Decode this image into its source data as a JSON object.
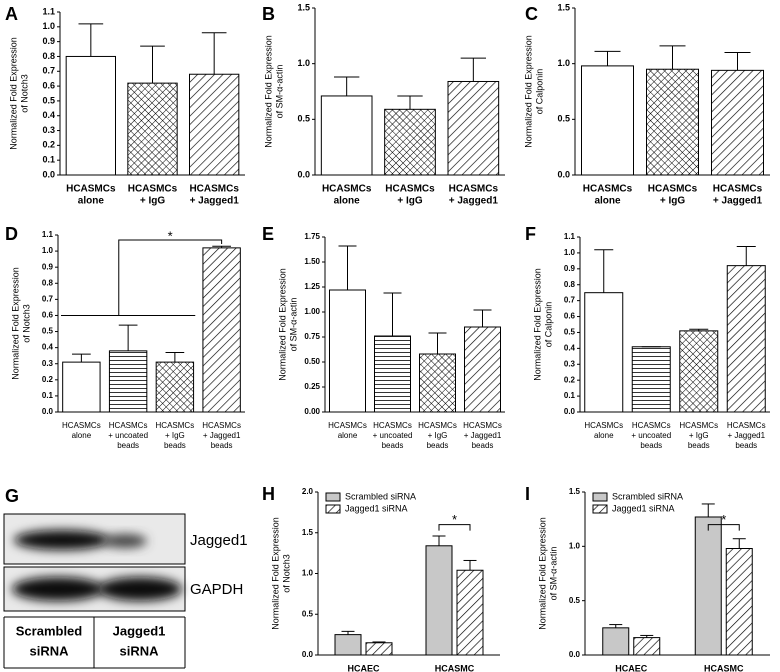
{
  "chart_data": [
    {
      "type": "bar",
      "panel": "A",
      "ylabel": [
        "Normalized Fold Expression",
        "of Notch3"
      ],
      "categories": [
        [
          "HCASMCs",
          "alone"
        ],
        [
          "HCASMCs",
          "+ IgG"
        ],
        [
          "HCASMCs",
          "+ Jagged1"
        ]
      ],
      "values": [
        0.8,
        0.62,
        0.68
      ],
      "errors": [
        0.22,
        0.25,
        0.28
      ],
      "patterns": [
        "none",
        "crosshatch",
        "diagonal"
      ],
      "ylim": [
        0,
        1.1
      ],
      "yticks": [
        {
          "value": 0,
          "label": "0.0"
        },
        0.1,
        0.2,
        0.3,
        0.4,
        0.5,
        0.6,
        0.7,
        0.8,
        0.9,
        {
          "value": 1,
          "label": "1.0"
        },
        1.1
      ]
    },
    {
      "type": "bar",
      "panel": "B",
      "ylabel": [
        "Normalized Fold Expression",
        "of SM-α-actin"
      ],
      "categories": [
        [
          "HCASMCs",
          "alone"
        ],
        [
          "HCASMCs",
          "+ IgG"
        ],
        [
          "HCASMCs",
          "+ Jagged1"
        ]
      ],
      "values": [
        0.71,
        0.59,
        0.84
      ],
      "errors": [
        0.17,
        0.12,
        0.21
      ],
      "patterns": [
        "none",
        "crosshatch",
        "diagonal"
      ],
      "ylim": [
        0,
        1.5
      ],
      "yticks": [
        {
          "value": 0,
          "label": "0.0"
        },
        0.5,
        {
          "value": 1,
          "label": "1.0"
        },
        1.5
      ]
    },
    {
      "type": "bar",
      "panel": "C",
      "ylabel": [
        "Normalized Fold Expression",
        "of Calponin"
      ],
      "categories": [
        [
          "HCASMCs",
          "alone"
        ],
        [
          "HCASMCs",
          "+ IgG"
        ],
        [
          "HCASMCs",
          "+ Jagged1"
        ]
      ],
      "values": [
        0.98,
        0.95,
        0.94
      ],
      "errors": [
        0.13,
        0.21,
        0.16
      ],
      "patterns": [
        "none",
        "crosshatch",
        "diagonal"
      ],
      "ylim": [
        0,
        1.5
      ],
      "yticks": [
        {
          "value": 0,
          "label": "0.0"
        },
        0.5,
        {
          "value": 1,
          "label": "1.0"
        },
        1.5
      ]
    },
    {
      "type": "bar",
      "panel": "D",
      "ylabel": [
        "Normalized Fold Expression",
        "of Notch3"
      ],
      "categories": [
        [
          "HCASMCs",
          "alone"
        ],
        [
          "HCASMCs",
          "+ uncoated",
          "beads"
        ],
        [
          "HCASMCs",
          "+ IgG",
          "beads"
        ],
        [
          "HCASMCs",
          "+ Jagged1",
          "beads"
        ]
      ],
      "values": [
        0.31,
        0.38,
        0.31,
        1.02
      ],
      "errors": [
        0.05,
        0.16,
        0.06,
        0.01
      ],
      "patterns": [
        "none",
        "horizontal",
        "crosshatch",
        "diagonal"
      ],
      "annotation": "*",
      "ylim": [
        0,
        1.1
      ],
      "yticks": [
        {
          "value": 0,
          "label": "0.0"
        },
        0.1,
        0.2,
        0.3,
        0.4,
        0.5,
        0.6,
        0.7,
        0.8,
        0.9,
        {
          "value": 1,
          "label": "1.0"
        },
        1.1
      ]
    },
    {
      "type": "bar",
      "panel": "E",
      "ylabel": [
        "Normalized Fold Expression",
        "of SM-α-actin"
      ],
      "categories": [
        [
          "HCASMCs",
          "alone"
        ],
        [
          "HCASMCs",
          "+ uncoated",
          "beads"
        ],
        [
          "HCASMCs",
          "+ IgG",
          "beads"
        ],
        [
          "HCASMCs",
          "+ Jagged1",
          "beads"
        ]
      ],
      "values": [
        1.22,
        0.76,
        0.58,
        0.85
      ],
      "errors": [
        0.44,
        0.43,
        0.21,
        0.17
      ],
      "patterns": [
        "none",
        "horizontal",
        "crosshatch",
        "diagonal"
      ],
      "ylim": [
        0,
        1.75
      ],
      "yticks": [
        {
          "value": 0,
          "label": "0.00"
        },
        0.25,
        {
          "value": 0.5,
          "label": "0.50"
        },
        0.75,
        {
          "value": 1,
          "label": "1.00"
        },
        1.25,
        {
          "value": 1.5,
          "label": "1.50"
        },
        1.75
      ]
    },
    {
      "type": "bar",
      "panel": "F",
      "ylabel": [
        "Normalized Fold Expression",
        "of Calponin"
      ],
      "categories": [
        [
          "HCASMCs",
          "alone"
        ],
        [
          "HCASMCs",
          "+ uncoated",
          "beads"
        ],
        [
          "HCASMCs",
          "+ IgG",
          "beads"
        ],
        [
          "HCASMCs",
          "+ Jagged1",
          "beads"
        ]
      ],
      "values": [
        0.75,
        0.41,
        0.51,
        0.92
      ],
      "errors": [
        0.27,
        0,
        0.01,
        0.12
      ],
      "patterns": [
        "none",
        "horizontal",
        "crosshatch",
        "diagonal"
      ],
      "ylim": [
        0,
        1.1
      ],
      "yticks": [
        {
          "value": 0,
          "label": "0.0"
        },
        0.1,
        0.2,
        0.3,
        0.4,
        0.5,
        0.6,
        0.7,
        0.8,
        0.9,
        {
          "value": 1,
          "label": "1.0"
        },
        1.1
      ]
    },
    {
      "type": "bar",
      "panel": "H",
      "ylabel": [
        "Normalized Fold Expression",
        "of Notch3"
      ],
      "categories": [
        [
          "HCAEC"
        ],
        [
          "HCASMC"
        ]
      ],
      "series": [
        {
          "name": "Scrambled siRNA",
          "color": "#c8c8c8",
          "pattern": "none",
          "values": [
            0.25,
            1.34
          ],
          "errors": [
            0.04,
            0.12
          ]
        },
        {
          "name": "Jagged1 siRNA",
          "color": "#ffffff",
          "pattern": "diagonal",
          "values": [
            0.15,
            1.04
          ],
          "errors": [
            0.01,
            0.12
          ]
        }
      ],
      "annotation": "*",
      "ylim": [
        0,
        2
      ],
      "yticks": [
        {
          "value": 0,
          "label": "0.0"
        },
        0.5,
        {
          "value": 1,
          "label": "1.0"
        },
        1.5,
        {
          "value": 2,
          "label": "2.0"
        }
      ]
    },
    {
      "type": "bar",
      "panel": "I",
      "ylabel": [
        "Normalized Fold Expression",
        "of SM-α-actin"
      ],
      "categories": [
        [
          "HCAEC"
        ],
        [
          "HCASMC"
        ]
      ],
      "series": [
        {
          "name": "Scrambled siRNA",
          "color": "#c8c8c8",
          "pattern": "none",
          "values": [
            0.25,
            1.27
          ],
          "errors": [
            0.03,
            0.12
          ]
        },
        {
          "name": "Jagged1 siRNA",
          "color": "#ffffff",
          "pattern": "diagonal",
          "values": [
            0.16,
            0.98
          ],
          "errors": [
            0.02,
            0.09
          ]
        }
      ],
      "annotation": "*",
      "ylim": [
        0,
        1.5
      ],
      "yticks": [
        {
          "value": 0,
          "label": "0.0"
        },
        0.5,
        {
          "value": 1,
          "label": "1.0"
        },
        1.5
      ]
    }
  ],
  "blot": {
    "panel": "G",
    "bands": [
      "Jagged1",
      "GAPDH"
    ],
    "lanes": [
      [
        "Scrambled",
        "siRNA"
      ],
      [
        "Jagged1",
        "siRNA"
      ]
    ]
  }
}
